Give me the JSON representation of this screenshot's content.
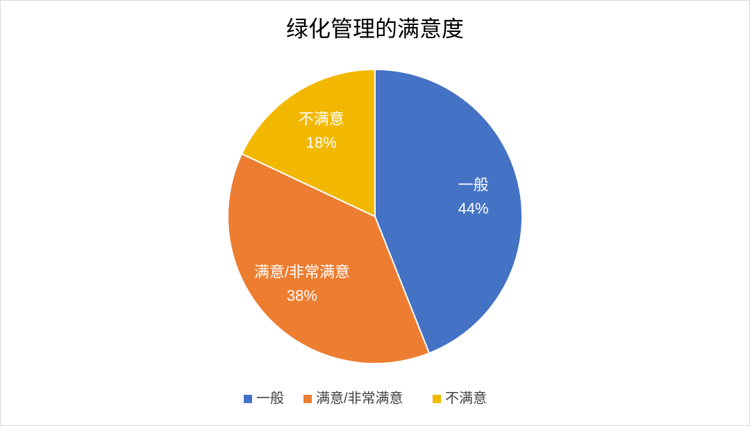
{
  "chart_data": {
    "type": "pie",
    "title": "绿化管理的满意度",
    "categories": [
      "一般",
      "满意/非常满意",
      "不满意"
    ],
    "values": [
      44,
      38,
      18
    ],
    "value_labels": [
      "44%",
      "38%",
      "18%"
    ],
    "colors": [
      "#4472c4",
      "#ed7d31",
      "#f2b800"
    ],
    "legend": "bottom"
  }
}
